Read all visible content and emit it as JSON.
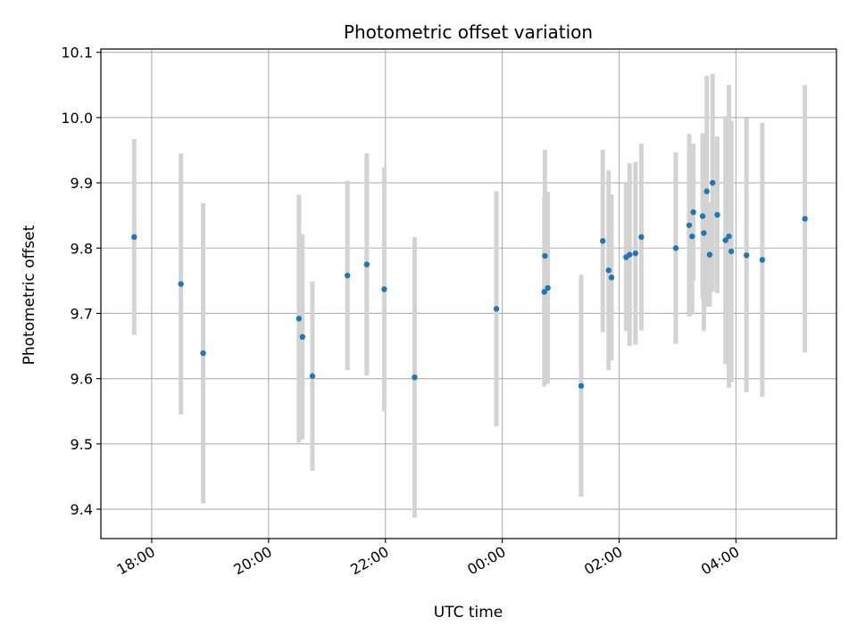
{
  "chart_data": {
    "type": "scatter",
    "title": "Photometric offset variation",
    "xlabel": "UTC time",
    "ylabel": "Photometric offset",
    "grid": true,
    "x_unit": "hours since 18:00 UTC",
    "xlim": [
      -0.87,
      11.72
    ],
    "ylim": [
      9.355,
      10.105
    ],
    "x_ticks": [
      {
        "value": 0,
        "label": "18:00"
      },
      {
        "value": 2,
        "label": "20:00"
      },
      {
        "value": 4,
        "label": "22:00"
      },
      {
        "value": 6,
        "label": "00:00"
      },
      {
        "value": 8,
        "label": "02:00"
      },
      {
        "value": 10,
        "label": "04:00"
      }
    ],
    "y_ticks": [
      {
        "value": 9.4,
        "label": "9.4"
      },
      {
        "value": 9.5,
        "label": "9.5"
      },
      {
        "value": 9.6,
        "label": "9.6"
      },
      {
        "value": 9.7,
        "label": "9.7"
      },
      {
        "value": 9.8,
        "label": "9.8"
      },
      {
        "value": 9.9,
        "label": "9.9"
      },
      {
        "value": 10.0,
        "label": "10.0"
      },
      {
        "value": 10.1,
        "label": "10.1"
      }
    ],
    "colors": {
      "point": "#1f77b4",
      "errorbar": "#d3d3d3",
      "grid": "#b0b0b0"
    },
    "points": [
      {
        "x": -0.3,
        "y": 9.817,
        "err": 0.15
      },
      {
        "x": 0.5,
        "y": 9.745,
        "err": 0.2
      },
      {
        "x": 0.88,
        "y": 9.639,
        "err": 0.23
      },
      {
        "x": 2.52,
        "y": 9.692,
        "err": 0.19
      },
      {
        "x": 2.58,
        "y": 9.664,
        "err": 0.157
      },
      {
        "x": 2.75,
        "y": 9.604,
        "err": 0.145
      },
      {
        "x": 3.35,
        "y": 9.758,
        "err": 0.145
      },
      {
        "x": 3.68,
        "y": 9.775,
        "err": 0.17
      },
      {
        "x": 3.98,
        "y": 9.737,
        "err": 0.187
      },
      {
        "x": 4.5,
        "y": 9.602,
        "err": 0.215
      },
      {
        "x": 5.9,
        "y": 9.707,
        "err": 0.18
      },
      {
        "x": 6.72,
        "y": 9.733,
        "err": 0.145
      },
      {
        "x": 6.73,
        "y": 9.788,
        "err": 0.163
      },
      {
        "x": 6.78,
        "y": 9.739,
        "err": 0.147
      },
      {
        "x": 7.35,
        "y": 9.589,
        "err": 0.17
      },
      {
        "x": 7.72,
        "y": 9.811,
        "err": 0.14
      },
      {
        "x": 7.82,
        "y": 9.766,
        "err": 0.153
      },
      {
        "x": 7.87,
        "y": 9.755,
        "err": 0.127
      },
      {
        "x": 8.12,
        "y": 9.786,
        "err": 0.113
      },
      {
        "x": 8.18,
        "y": 9.79,
        "err": 0.14
      },
      {
        "x": 8.28,
        "y": 9.792,
        "err": 0.14
      },
      {
        "x": 8.38,
        "y": 9.817,
        "err": 0.143
      },
      {
        "x": 8.97,
        "y": 9.8,
        "err": 0.147
      },
      {
        "x": 9.2,
        "y": 9.835,
        "err": 0.14
      },
      {
        "x": 9.25,
        "y": 9.818,
        "err": 0.12
      },
      {
        "x": 9.27,
        "y": 9.855,
        "err": 0.105
      },
      {
        "x": 9.43,
        "y": 9.849,
        "err": 0.127
      },
      {
        "x": 9.45,
        "y": 9.823,
        "err": 0.15
      },
      {
        "x": 9.5,
        "y": 9.887,
        "err": 0.177
      },
      {
        "x": 9.55,
        "y": 9.79,
        "err": 0.08
      },
      {
        "x": 9.6,
        "y": 9.9,
        "err": 0.167
      },
      {
        "x": 9.68,
        "y": 9.851,
        "err": 0.12
      },
      {
        "x": 9.82,
        "y": 9.812,
        "err": 0.19
      },
      {
        "x": 9.88,
        "y": 9.818,
        "err": 0.232
      },
      {
        "x": 9.92,
        "y": 9.795,
        "err": 0.2
      },
      {
        "x": 10.18,
        "y": 9.789,
        "err": 0.21
      },
      {
        "x": 10.45,
        "y": 9.782,
        "err": 0.21
      },
      {
        "x": 11.18,
        "y": 9.845,
        "err": 0.205
      }
    ]
  }
}
